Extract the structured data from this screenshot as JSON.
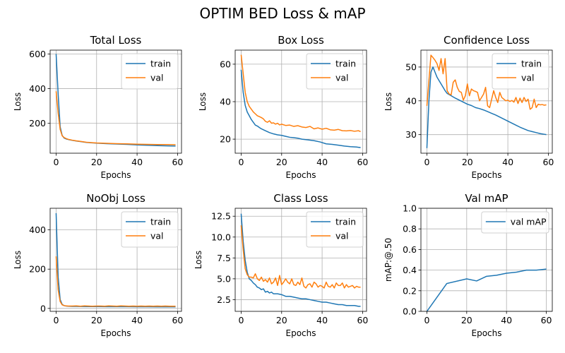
{
  "figure": {
    "title": "OPTIM BED Loss & mAP"
  },
  "chart_data": [
    {
      "type": "line",
      "title": "Total Loss",
      "xlabel": "Epochs",
      "ylabel": "Loss",
      "xlim": [
        -2.95,
        61.95
      ],
      "ylim": [
        28,
        622
      ],
      "xticks": [
        0,
        20,
        40,
        60
      ],
      "yticks": [
        200,
        400,
        600
      ],
      "grid": true,
      "legend": "upper right",
      "series": [
        {
          "name": "train",
          "color": "#1f77b4",
          "x": [
            0,
            1,
            2,
            3,
            4,
            5,
            6,
            8,
            10,
            12,
            15,
            20,
            25,
            30,
            35,
            40,
            45,
            50,
            55,
            59
          ],
          "y": [
            600,
            370,
            180,
            130,
            115,
            110,
            107,
            102,
            98,
            95,
            90,
            86,
            83,
            81,
            79,
            76,
            74,
            72,
            70,
            69
          ]
        },
        {
          "name": "val",
          "color": "#ff7f0e",
          "x": [
            0,
            1,
            2,
            3,
            4,
            5,
            6,
            8,
            10,
            12,
            15,
            20,
            25,
            30,
            35,
            40,
            45,
            50,
            55,
            59
          ],
          "y": [
            385,
            260,
            165,
            128,
            118,
            112,
            108,
            103,
            99,
            96,
            91,
            87,
            85,
            83,
            82,
            80,
            79,
            78,
            78,
            77
          ]
        }
      ]
    },
    {
      "type": "line",
      "title": "Box Loss",
      "xlabel": "Epochs",
      "ylabel": "Loss",
      "xlim": [
        -2.95,
        61.95
      ],
      "ylim": [
        12.5,
        67.5
      ],
      "xticks": [
        0,
        20,
        40,
        60
      ],
      "yticks": [
        20,
        40,
        60
      ],
      "grid": true,
      "legend": "upper right",
      "series": [
        {
          "name": "train",
          "color": "#1f77b4",
          "x": [
            0,
            1,
            2,
            3,
            4,
            5,
            6,
            7,
            8,
            9,
            10,
            12,
            14,
            16,
            18,
            20,
            22,
            24,
            26,
            28,
            30,
            33,
            36,
            39,
            42,
            45,
            48,
            51,
            54,
            57,
            59
          ],
          "y": [
            57,
            45,
            38,
            34.5,
            32.5,
            30.5,
            29,
            27.5,
            27,
            26.2,
            25.5,
            24.5,
            23.5,
            22.8,
            22.3,
            22,
            21.5,
            21,
            20.8,
            20.5,
            20,
            19.6,
            19.2,
            18.5,
            17.5,
            17.2,
            16.8,
            16.3,
            16,
            15.8,
            15.5
          ]
        },
        {
          "name": "val",
          "color": "#ff7f0e",
          "x": [
            0,
            1,
            2,
            3,
            4,
            5,
            6,
            7,
            8,
            9,
            10,
            11,
            12,
            13,
            14,
            15,
            16,
            17,
            18,
            19,
            20,
            22,
            24,
            26,
            28,
            30,
            32,
            34,
            36,
            38,
            40,
            42,
            44,
            46,
            48,
            50,
            52,
            54,
            56,
            58,
            59
          ],
          "y": [
            65,
            55,
            45,
            40,
            37.5,
            36,
            34.5,
            33.5,
            32.5,
            32,
            31.5,
            30.8,
            29.5,
            29,
            29.8,
            28.5,
            28.7,
            28,
            28.5,
            27.6,
            28,
            27.3,
            27.5,
            26.8,
            27.2,
            26.5,
            26.2,
            26.8,
            25.5,
            26,
            25.3,
            25.8,
            25,
            24.8,
            25.2,
            24.5,
            24.4,
            24.6,
            24.2,
            24.5,
            24
          ]
        }
      ]
    },
    {
      "type": "line",
      "title": "Confidence Loss",
      "xlabel": "Epochs",
      "ylabel": "Loss",
      "xlim": [
        -2.95,
        61.95
      ],
      "ylim": [
        24.5,
        55
      ],
      "xticks": [
        0,
        20,
        40,
        60
      ],
      "yticks": [
        30,
        40,
        50
      ],
      "grid": true,
      "legend": "upper right",
      "series": [
        {
          "name": "train",
          "color": "#1f77b4",
          "x": [
            0,
            1,
            2,
            3,
            4,
            5,
            6,
            7,
            8,
            9,
            10,
            12,
            14,
            16,
            18,
            20,
            22,
            24,
            26,
            28,
            30,
            32,
            34,
            36,
            38,
            40,
            42,
            44,
            46,
            48,
            50,
            52,
            54,
            56,
            58,
            59
          ],
          "y": [
            26,
            40,
            48.5,
            50,
            48.5,
            47,
            46,
            45,
            44,
            43,
            42.2,
            41.5,
            40.8,
            40.2,
            39.6,
            39,
            38.6,
            38,
            37.7,
            37.3,
            36.8,
            36.3,
            35.8,
            35.2,
            34.6,
            34,
            33.4,
            32.8,
            32.2,
            31.7,
            31.2,
            30.9,
            30.6,
            30.3,
            30.1,
            30
          ]
        },
        {
          "name": "val",
          "color": "#ff7f0e",
          "x": [
            0,
            1,
            2,
            3,
            4,
            5,
            6,
            7,
            8,
            9,
            10,
            11,
            12,
            13,
            14,
            15,
            16,
            17,
            18,
            19,
            20,
            21,
            22,
            23,
            24,
            25,
            26,
            27,
            28,
            29,
            30,
            31,
            32,
            33,
            34,
            35,
            36,
            37,
            38,
            39,
            40,
            41,
            42,
            43,
            44,
            45,
            46,
            47,
            48,
            49,
            50,
            51,
            52,
            53,
            54,
            55,
            56,
            57,
            58,
            59
          ],
          "y": [
            38.5,
            46,
            53.5,
            52.8,
            52,
            51,
            49,
            52.5,
            48,
            52.5,
            43,
            42,
            41.8,
            45.5,
            46.2,
            44,
            42.8,
            42.5,
            40.2,
            41.5,
            45,
            41.5,
            43.5,
            43,
            42.8,
            42.5,
            40,
            41,
            42,
            44,
            38.5,
            38,
            40.5,
            43,
            41,
            39.5,
            42.5,
            41,
            40.5,
            40,
            40.2,
            39.8,
            40.1,
            39.6,
            41,
            39.2,
            40.8,
            39.5,
            41,
            39.8,
            40.5,
            37.5,
            38,
            40.5,
            38,
            39,
            38.8,
            38.9,
            38.7,
            38.8
          ]
        }
      ]
    },
    {
      "type": "line",
      "title": "NoObj Loss",
      "xlabel": "Epochs",
      "ylabel": "Loss",
      "xlim": [
        -2.95,
        61.95
      ],
      "ylim": [
        -15,
        510
      ],
      "xticks": [
        0,
        20,
        40,
        60
      ],
      "yticks": [
        0,
        200,
        400
      ],
      "grid": true,
      "legend": "upper right",
      "series": [
        {
          "name": "train",
          "color": "#1f77b4",
          "x": [
            0,
            1,
            2,
            3,
            4,
            5,
            6,
            8,
            10,
            15,
            20,
            25,
            30,
            35,
            40,
            45,
            50,
            55,
            59
          ],
          "y": [
            485,
            160,
            45,
            20,
            14,
            12,
            11,
            10,
            10,
            9.5,
            9.5,
            9,
            9,
            9,
            8.5,
            8.5,
            8,
            8,
            8
          ]
        },
        {
          "name": "val",
          "color": "#ff7f0e",
          "x": [
            0,
            1,
            2,
            3,
            4,
            5,
            6,
            8,
            10,
            12,
            14,
            16,
            18,
            20,
            22,
            24,
            26,
            28,
            30,
            32,
            34,
            36,
            38,
            40,
            42,
            44,
            46,
            48,
            50,
            52,
            54,
            56,
            58,
            59
          ],
          "y": [
            265,
            95,
            35,
            18,
            14,
            13,
            12,
            12,
            13,
            11,
            13,
            12,
            11,
            12,
            12,
            11,
            13,
            12,
            11,
            13,
            12,
            11,
            12,
            11,
            12,
            11,
            12,
            11,
            12,
            11,
            12,
            11,
            11,
            11
          ]
        }
      ]
    },
    {
      "type": "line",
      "title": "Class Loss",
      "xlabel": "Epochs",
      "ylabel": "Loss",
      "xlim": [
        -2.95,
        61.95
      ],
      "ylim": [
        1.1,
        13.45
      ],
      "xticks": [
        0,
        20,
        40,
        60
      ],
      "yticks": [
        2.5,
        5.0,
        7.5,
        10.0,
        12.5
      ],
      "ytick_labels": [
        "2.5",
        "5.0",
        "7.5",
        "10.0",
        "12.5"
      ],
      "grid": true,
      "legend": "upper right",
      "series": [
        {
          "name": "train",
          "color": "#1f77b4",
          "x": [
            0,
            1,
            2,
            3,
            4,
            5,
            6,
            7,
            8,
            9,
            10,
            11,
            12,
            13,
            14,
            15,
            16,
            18,
            20,
            22,
            24,
            26,
            28,
            30,
            32,
            34,
            36,
            38,
            40,
            42,
            44,
            46,
            48,
            50,
            52,
            54,
            56,
            58,
            59
          ],
          "y": [
            12.8,
            9.5,
            7.2,
            5.8,
            5,
            4.8,
            4.5,
            4.3,
            4,
            3.9,
            3.7,
            3.8,
            3.4,
            3.5,
            3.3,
            3.4,
            3.2,
            3.2,
            3.1,
            2.9,
            2.9,
            2.8,
            2.7,
            2.6,
            2.6,
            2.5,
            2.4,
            2.3,
            2.2,
            2.2,
            2.1,
            2.0,
            1.9,
            1.9,
            1.8,
            1.8,
            1.8,
            1.7,
            1.7
          ]
        },
        {
          "name": "val",
          "color": "#ff7f0e",
          "x": [
            0,
            1,
            2,
            3,
            4,
            5,
            6,
            7,
            8,
            9,
            10,
            11,
            12,
            13,
            14,
            15,
            16,
            17,
            18,
            19,
            20,
            21,
            22,
            23,
            24,
            25,
            26,
            27,
            28,
            29,
            30,
            31,
            32,
            33,
            34,
            35,
            36,
            37,
            38,
            39,
            40,
            41,
            42,
            43,
            44,
            45,
            46,
            47,
            48,
            49,
            50,
            51,
            52,
            53,
            54,
            55,
            56,
            57,
            58,
            59
          ],
          "y": [
            11.4,
            8.5,
            6.2,
            5.5,
            5.2,
            5.2,
            5.1,
            5.6,
            5.0,
            4.8,
            5.2,
            4.7,
            4.9,
            4.6,
            5.1,
            4.4,
            4.6,
            5.1,
            4.2,
            5.4,
            4.3,
            4.6,
            5.0,
            4.6,
            4.4,
            5.0,
            4.3,
            4.2,
            4.6,
            4.3,
            5.1,
            4.1,
            3.9,
            4.3,
            4.4,
            4.0,
            4.6,
            4.4,
            4.0,
            4.2,
            4.1,
            3.9,
            4.6,
            4.1,
            4.0,
            4.3,
            3.9,
            4.5,
            4.2,
            4.2,
            4.5,
            3.9,
            4.3,
            4.0,
            4.1,
            4.2,
            3.9,
            4.1,
            4.0,
            4.0
          ]
        }
      ]
    },
    {
      "type": "line",
      "title": "Val mAP",
      "xlabel": "Epochs",
      "ylabel": "mAP:@.50",
      "xlim": [
        -3,
        63
      ],
      "ylim": [
        0.0,
        1.0
      ],
      "xticks": [
        0,
        20,
        40,
        60
      ],
      "yticks": [
        0.0,
        0.2,
        0.4,
        0.6,
        0.8,
        1.0
      ],
      "ytick_labels": [
        "0.0",
        "0.2",
        "0.4",
        "0.6",
        "0.8",
        "1.0"
      ],
      "grid": true,
      "legend": "upper right",
      "series": [
        {
          "name": "val mAP",
          "color": "#1f77b4",
          "x": [
            0,
            10,
            20,
            25,
            30,
            35,
            40,
            45,
            50,
            55,
            60
          ],
          "y": [
            0.0,
            0.27,
            0.315,
            0.295,
            0.34,
            0.35,
            0.37,
            0.38,
            0.4,
            0.4,
            0.41
          ]
        }
      ]
    }
  ]
}
